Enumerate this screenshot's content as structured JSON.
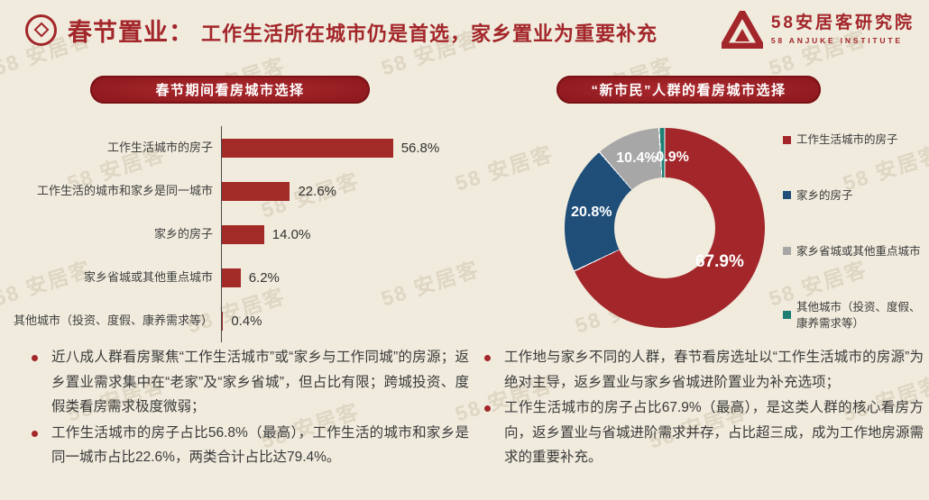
{
  "header": {
    "title_strong": "春节置业：",
    "title_rest": "工作生活所在城市仍是首选，家乡置业为重要补充",
    "logo": {
      "cn": "58安居客研究院",
      "en": "58 ANJUKE INSTITUTE"
    }
  },
  "watermark_text": "58 安居客",
  "colors": {
    "accent_red": "#A3262A",
    "bar_red": "#A32B27",
    "pill_red": "#8E191E",
    "donut_blue": "#1F4E79",
    "donut_gray": "#A7A7A7",
    "donut_teal": "#1E7E74",
    "background": "#F0EBDD",
    "text_dark": "#3a3a3a"
  },
  "left_panel": {
    "pill": "春节期间看房城市选择",
    "bullets": [
      "近八成人群看房聚焦“工作生活城市”或“家乡与工作同城”的房源；返乡置业需求集中在“老家”及“家乡省城”，但占比有限；跨城投资、度假类看房需求极度微弱；",
      "工作生活城市的房子占比56.8%（最高），工作生活的城市和家乡是同一城市占比22.6%，两类合计占比达79.4%。"
    ]
  },
  "right_panel": {
    "pill": "“新市民”人群的看房城市选择",
    "bullets": [
      "工作地与家乡不同的人群，春节看房选址以“工作生活城市的房源”为绝对主导，返乡置业与家乡省城进阶置业为补充选项；",
      "工作生活城市的房子占比67.9%（最高），是这类人群的核心看房方向，返乡置业与省城进阶需求并存，占比超三成，成为工作地房源需求的重要补充。"
    ]
  },
  "chart_data": [
    {
      "type": "bar",
      "orientation": "horizontal",
      "title": "春节期间看房城市选择",
      "categories": [
        "工作生活城市的房子",
        "工作生活的城市和家乡是同一城市",
        "家乡的房子",
        "家乡省城或其他重点城市",
        "其他城市（投资、度假、康养需求等）"
      ],
      "values": [
        56.8,
        22.6,
        14.0,
        6.2,
        0.4
      ],
      "value_labels": [
        "56.8%",
        "22.6%",
        "14.0%",
        "6.2%",
        "0.4%"
      ],
      "bar_color": "#A32B27",
      "xlim": [
        0,
        60
      ],
      "grid": false
    },
    {
      "type": "pie",
      "subtype": "donut",
      "title": "“新市民”人群的看房城市选择",
      "labels": [
        "工作生活城市的房子",
        "家乡的房子",
        "家乡省城或其他重点城市",
        "其他城市（投资、度假、康养需求等）"
      ],
      "values": [
        67.9,
        20.8,
        10.4,
        0.9
      ],
      "slice_labels": [
        "67.9%",
        "20.8%",
        "10.4%",
        "0.9%"
      ],
      "colors": [
        "#A3262A",
        "#1F4E79",
        "#A7A7A7",
        "#1E7E74"
      ],
      "legend_position": "right",
      "start_angle": "12-oclock-clockwise"
    }
  ]
}
